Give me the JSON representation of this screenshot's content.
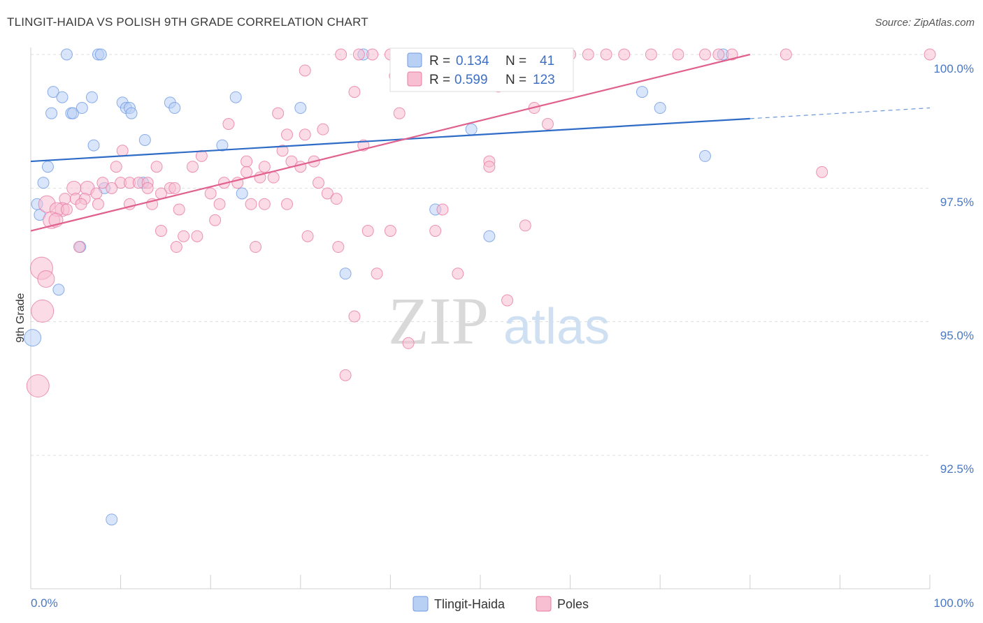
{
  "header": {
    "title": "TLINGIT-HAIDA VS POLISH 9TH GRADE CORRELATION CHART",
    "source_label": "Source: ZipAtlas.com"
  },
  "watermark": {
    "zip": "ZIP",
    "atlas": "atlas"
  },
  "chart_data": {
    "type": "scatter",
    "xlabel": "",
    "ylabel": "9th Grade",
    "xlim": [
      0,
      100
    ],
    "ylim": [
      90.0,
      100.5
    ],
    "x_tick_labels": [
      "0.0%",
      "100.0%"
    ],
    "y_ticks": [
      92.5,
      95.0,
      97.5,
      100.0
    ],
    "y_tick_labels": [
      "92.5%",
      "95.0%",
      "97.5%",
      "100.0%"
    ],
    "grid": true,
    "legend": [
      {
        "name": "Tlingit-Haida",
        "r_label": "R =",
        "r_value": "0.134",
        "n_label": "N =",
        "n_value": "41",
        "color": "#6f9be3",
        "fill": "#b9d0f5"
      },
      {
        "name": "Poles",
        "r_label": "R =",
        "r_value": "0.599",
        "n_label": "N =",
        "n_value": "123",
        "color": "#e87ba2",
        "fill": "#f8bed1"
      }
    ],
    "series": [
      {
        "name": "Tlingit-Haida",
        "color": "#6f9be3",
        "trend": {
          "x0": 0,
          "y0": 98.0,
          "x1": 80,
          "y1": 98.8,
          "dash_to_x": 100,
          "dash_to_y": 99.0,
          "color": "#2f6cc7"
        },
        "points": [
          [
            4,
            100
          ],
          [
            7.5,
            100
          ],
          [
            7.8,
            100
          ],
          [
            37,
            100
          ],
          [
            77,
            100
          ],
          [
            2.5,
            99.3
          ],
          [
            3.5,
            99.2
          ],
          [
            6.8,
            99.2
          ],
          [
            2.3,
            98.9
          ],
          [
            4.5,
            98.9
          ],
          [
            4.7,
            98.9
          ],
          [
            5.7,
            99.0
          ],
          [
            10.2,
            99.1
          ],
          [
            10.6,
            99.0
          ],
          [
            11.0,
            99.0
          ],
          [
            11.2,
            98.9
          ],
          [
            15.5,
            99.1
          ],
          [
            16.0,
            99.0
          ],
          [
            22.8,
            99.2
          ],
          [
            30.0,
            99.0
          ],
          [
            12.7,
            98.4
          ],
          [
            7.0,
            98.3
          ],
          [
            21.3,
            98.3
          ],
          [
            1.9,
            97.9
          ],
          [
            1.4,
            97.6
          ],
          [
            8.2,
            97.5
          ],
          [
            12.5,
            97.6
          ],
          [
            0.7,
            97.2
          ],
          [
            1.0,
            97.0
          ],
          [
            23.5,
            97.4
          ],
          [
            45.0,
            97.1
          ],
          [
            49.0,
            98.6
          ],
          [
            68.0,
            99.3
          ],
          [
            70.0,
            99.0
          ],
          [
            75.0,
            98.1
          ],
          [
            5.5,
            96.4
          ],
          [
            3.1,
            95.6
          ],
          [
            35.0,
            95.9
          ],
          [
            51.0,
            96.6
          ],
          [
            0.2,
            94.7
          ],
          [
            9.0,
            91.3
          ]
        ],
        "sizes": [
          8,
          8,
          8,
          8,
          8,
          8,
          8,
          8,
          8,
          8,
          8,
          8,
          8,
          8,
          8,
          8,
          8,
          8,
          8,
          8,
          8,
          8,
          8,
          8,
          8,
          8,
          8,
          8,
          8,
          8,
          8,
          8,
          8,
          8,
          8,
          8,
          8,
          8,
          8,
          12,
          8
        ]
      },
      {
        "name": "Poles",
        "color": "#e87ba2",
        "trend": {
          "x0": 0,
          "y0": 96.7,
          "x1": 80,
          "y1": 100.0,
          "color": "#e0608e"
        },
        "points": [
          [
            34.5,
            100
          ],
          [
            36.5,
            100
          ],
          [
            38,
            100
          ],
          [
            40,
            100
          ],
          [
            42,
            100
          ],
          [
            45,
            100
          ],
          [
            47,
            100
          ],
          [
            49,
            100
          ],
          [
            51,
            100
          ],
          [
            53,
            100
          ],
          [
            55,
            100
          ],
          [
            56.5,
            100
          ],
          [
            58,
            100
          ],
          [
            60,
            100
          ],
          [
            62,
            100
          ],
          [
            64,
            100
          ],
          [
            66,
            100
          ],
          [
            69,
            100
          ],
          [
            72,
            100
          ],
          [
            75,
            100
          ],
          [
            76.5,
            100
          ],
          [
            78,
            100
          ],
          [
            84,
            100
          ],
          [
            100,
            100
          ],
          [
            30.5,
            99.7
          ],
          [
            36,
            99.3
          ],
          [
            40.5,
            99.6
          ],
          [
            42,
            99.6
          ],
          [
            52,
            99.4
          ],
          [
            56,
            99.0
          ],
          [
            41,
            98.9
          ],
          [
            27.5,
            98.9
          ],
          [
            22,
            98.7
          ],
          [
            57.5,
            98.7
          ],
          [
            28.5,
            98.5
          ],
          [
            30.5,
            98.5
          ],
          [
            32.5,
            98.6
          ],
          [
            37,
            98.3
          ],
          [
            28,
            98.2
          ],
          [
            10.2,
            98.2
          ],
          [
            19,
            98.1
          ],
          [
            24,
            98.0
          ],
          [
            29,
            98.0
          ],
          [
            31.5,
            98.0
          ],
          [
            9.5,
            97.9
          ],
          [
            14,
            97.9
          ],
          [
            18,
            97.9
          ],
          [
            26,
            97.9
          ],
          [
            30,
            97.9
          ],
          [
            24,
            97.8
          ],
          [
            51,
            98.0
          ],
          [
            51,
            97.9
          ],
          [
            88,
            97.8
          ],
          [
            10,
            97.6
          ],
          [
            11,
            97.6
          ],
          [
            12,
            97.6
          ],
          [
            13,
            97.6
          ],
          [
            6.3,
            97.5
          ],
          [
            8,
            97.6
          ],
          [
            21.5,
            97.6
          ],
          [
            23,
            97.6
          ],
          [
            25.5,
            97.7
          ],
          [
            27,
            97.7
          ],
          [
            32,
            97.6
          ],
          [
            4.8,
            97.5
          ],
          [
            7.3,
            97.4
          ],
          [
            9,
            97.5
          ],
          [
            13,
            97.5
          ],
          [
            15.5,
            97.5
          ],
          [
            16,
            97.5
          ],
          [
            20,
            97.4
          ],
          [
            33,
            97.4
          ],
          [
            3.8,
            97.3
          ],
          [
            5,
            97.3
          ],
          [
            6,
            97.3
          ],
          [
            14.5,
            97.4
          ],
          [
            34,
            97.3
          ],
          [
            1.8,
            97.2
          ],
          [
            3.5,
            97.1
          ],
          [
            7.5,
            97.2
          ],
          [
            11,
            97.2
          ],
          [
            13.5,
            97.2
          ],
          [
            16.5,
            97.1
          ],
          [
            21,
            97.2
          ],
          [
            24.5,
            97.2
          ],
          [
            26,
            97.2
          ],
          [
            28.5,
            97.2
          ],
          [
            45.8,
            97.1
          ],
          [
            2.9,
            97.1
          ],
          [
            4,
            97.1
          ],
          [
            5.6,
            97.2
          ],
          [
            2.3,
            96.9
          ],
          [
            2.8,
            96.9
          ],
          [
            20.5,
            96.9
          ],
          [
            14.5,
            96.7
          ],
          [
            17,
            96.6
          ],
          [
            18.5,
            96.6
          ],
          [
            30.8,
            96.6
          ],
          [
            37.5,
            96.7
          ],
          [
            40,
            96.7
          ],
          [
            45,
            96.7
          ],
          [
            55,
            96.8
          ],
          [
            5.4,
            96.4
          ],
          [
            16.2,
            96.4
          ],
          [
            25,
            96.4
          ],
          [
            34.2,
            96.4
          ],
          [
            1.2,
            96.0
          ],
          [
            1.7,
            95.8
          ],
          [
            38.5,
            95.9
          ],
          [
            47.5,
            95.9
          ],
          [
            53,
            95.4
          ],
          [
            1.3,
            95.2
          ],
          [
            36,
            95.1
          ],
          [
            42,
            94.6
          ],
          [
            35,
            94.0
          ],
          [
            0.8,
            93.8
          ]
        ],
        "sizes": [
          8,
          8,
          8,
          8,
          8,
          8,
          8,
          8,
          8,
          8,
          8,
          8,
          8,
          8,
          8,
          8,
          8,
          8,
          8,
          8,
          8,
          8,
          8,
          8,
          8,
          8,
          8,
          8,
          8,
          8,
          8,
          8,
          8,
          8,
          8,
          8,
          8,
          8,
          8,
          8,
          8,
          8,
          8,
          8,
          8,
          8,
          8,
          8,
          8,
          8,
          8,
          8,
          8,
          8,
          8,
          8,
          8,
          10,
          8,
          8,
          8,
          8,
          8,
          8,
          10,
          8,
          8,
          8,
          8,
          8,
          8,
          8,
          8,
          8,
          8,
          8,
          8,
          12,
          10,
          8,
          8,
          8,
          8,
          8,
          8,
          8,
          8,
          8,
          10,
          8,
          8,
          12,
          10,
          8,
          8,
          8,
          8,
          8,
          8,
          8,
          8,
          8,
          8,
          8,
          8,
          8,
          16,
          12,
          8,
          8,
          8,
          16,
          8,
          8,
          8,
          16
        ]
      }
    ]
  }
}
